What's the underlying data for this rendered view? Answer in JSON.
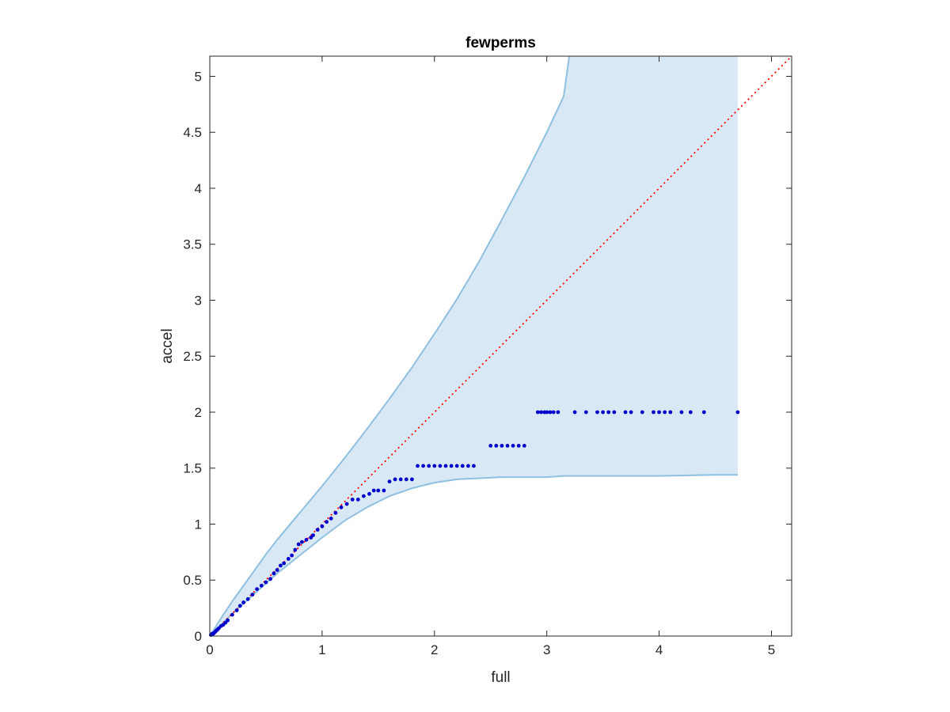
{
  "chart_data": {
    "type": "scatter",
    "title": "fewperms",
    "xlabel": "full",
    "ylabel": "accel",
    "xlim": [
      0,
      5.18
    ],
    "ylim": [
      0,
      5.18
    ],
    "x_ticks": [
      0,
      1,
      2,
      3,
      4,
      5
    ],
    "x_tick_labels": [
      "0",
      "1",
      "2",
      "3",
      "4",
      "5"
    ],
    "y_ticks": [
      0,
      0.5,
      1,
      1.5,
      2,
      2.5,
      3,
      3.5,
      4,
      4.5,
      5
    ],
    "y_tick_labels": [
      "0",
      "0.5",
      "1",
      "1.5",
      "2",
      "2.5",
      "3",
      "3.5",
      "4",
      "4.5",
      "5"
    ],
    "grid": false,
    "box": true,
    "band": {
      "fill_color": "#d8e8f4",
      "edge_color": "#8fc0e0",
      "x": [
        0,
        0.1,
        0.2,
        0.3,
        0.4,
        0.5,
        0.6,
        0.8,
        1.0,
        1.2,
        1.4,
        1.6,
        1.8,
        2.0,
        2.2,
        2.4,
        2.6,
        2.8,
        3.0,
        3.15,
        3.2,
        3.5,
        4.0,
        4.5,
        4.7
      ],
      "upper": [
        0,
        0.16,
        0.31,
        0.45,
        0.59,
        0.73,
        0.86,
        1.1,
        1.34,
        1.59,
        1.85,
        2.12,
        2.4,
        2.7,
        3.01,
        3.35,
        3.72,
        4.1,
        4.5,
        4.82,
        5.18,
        5.18,
        5.18,
        5.18,
        5.18
      ],
      "lower": [
        0,
        0.1,
        0.2,
        0.29,
        0.38,
        0.47,
        0.56,
        0.72,
        0.88,
        1.03,
        1.15,
        1.25,
        1.32,
        1.37,
        1.4,
        1.41,
        1.42,
        1.42,
        1.42,
        1.43,
        1.43,
        1.43,
        1.43,
        1.44,
        1.44
      ]
    },
    "reference_line": {
      "x": [
        0,
        5.18
      ],
      "y": [
        0,
        5.18
      ],
      "color": "#ff0000",
      "style": "dotted"
    },
    "series": [
      {
        "color": "#0000cc",
        "marker": "dot",
        "points": [
          [
            0.01,
            0.01
          ],
          [
            0.02,
            0.02
          ],
          [
            0.03,
            0.02
          ],
          [
            0.04,
            0.03
          ],
          [
            0.05,
            0.04
          ],
          [
            0.06,
            0.05
          ],
          [
            0.07,
            0.06
          ],
          [
            0.08,
            0.07
          ],
          [
            0.1,
            0.09
          ],
          [
            0.12,
            0.1
          ],
          [
            0.14,
            0.12
          ],
          [
            0.16,
            0.14
          ],
          [
            0.2,
            0.19
          ],
          [
            0.24,
            0.23
          ],
          [
            0.27,
            0.27
          ],
          [
            0.3,
            0.3
          ],
          [
            0.34,
            0.33
          ],
          [
            0.38,
            0.37
          ],
          [
            0.42,
            0.42
          ],
          [
            0.46,
            0.45
          ],
          [
            0.5,
            0.48
          ],
          [
            0.54,
            0.51
          ],
          [
            0.57,
            0.56
          ],
          [
            0.6,
            0.59
          ],
          [
            0.63,
            0.63
          ],
          [
            0.66,
            0.65
          ],
          [
            0.7,
            0.69
          ],
          [
            0.73,
            0.72
          ],
          [
            0.76,
            0.77
          ],
          [
            0.79,
            0.82
          ],
          [
            0.82,
            0.84
          ],
          [
            0.86,
            0.86
          ],
          [
            0.9,
            0.88
          ],
          [
            0.92,
            0.9
          ],
          [
            0.96,
            0.95
          ],
          [
            1.0,
            0.98
          ],
          [
            1.04,
            1.02
          ],
          [
            1.08,
            1.05
          ],
          [
            1.12,
            1.1
          ],
          [
            1.17,
            1.15
          ],
          [
            1.22,
            1.18
          ],
          [
            1.27,
            1.22
          ],
          [
            1.32,
            1.22
          ],
          [
            1.37,
            1.25
          ],
          [
            1.42,
            1.27
          ],
          [
            1.46,
            1.3
          ],
          [
            1.5,
            1.3
          ],
          [
            1.55,
            1.3
          ],
          [
            1.6,
            1.38
          ],
          [
            1.65,
            1.4
          ],
          [
            1.7,
            1.4
          ],
          [
            1.75,
            1.4
          ],
          [
            1.8,
            1.4
          ],
          [
            1.85,
            1.52
          ],
          [
            1.9,
            1.52
          ],
          [
            1.95,
            1.52
          ],
          [
            2.0,
            1.52
          ],
          [
            2.05,
            1.52
          ],
          [
            2.1,
            1.52
          ],
          [
            2.15,
            1.52
          ],
          [
            2.2,
            1.52
          ],
          [
            2.25,
            1.52
          ],
          [
            2.3,
            1.52
          ],
          [
            2.35,
            1.52
          ],
          [
            2.5,
            1.7
          ],
          [
            2.55,
            1.7
          ],
          [
            2.6,
            1.7
          ],
          [
            2.65,
            1.7
          ],
          [
            2.7,
            1.7
          ],
          [
            2.75,
            1.7
          ],
          [
            2.8,
            1.7
          ],
          [
            2.92,
            2.0
          ],
          [
            2.95,
            2.0
          ],
          [
            2.98,
            2.0
          ],
          [
            3.0,
            2.0
          ],
          [
            3.03,
            2.0
          ],
          [
            3.06,
            2.0
          ],
          [
            3.1,
            2.0
          ],
          [
            3.25,
            2.0
          ],
          [
            3.35,
            2.0
          ],
          [
            3.45,
            2.0
          ],
          [
            3.5,
            2.0
          ],
          [
            3.55,
            2.0
          ],
          [
            3.6,
            2.0
          ],
          [
            3.7,
            2.0
          ],
          [
            3.75,
            2.0
          ],
          [
            3.85,
            2.0
          ],
          [
            3.95,
            2.0
          ],
          [
            4.0,
            2.0
          ],
          [
            4.05,
            2.0
          ],
          [
            4.1,
            2.0
          ],
          [
            4.2,
            2.0
          ],
          [
            4.28,
            2.0
          ],
          [
            4.4,
            2.0
          ],
          [
            4.7,
            2.0
          ]
        ]
      }
    ]
  }
}
